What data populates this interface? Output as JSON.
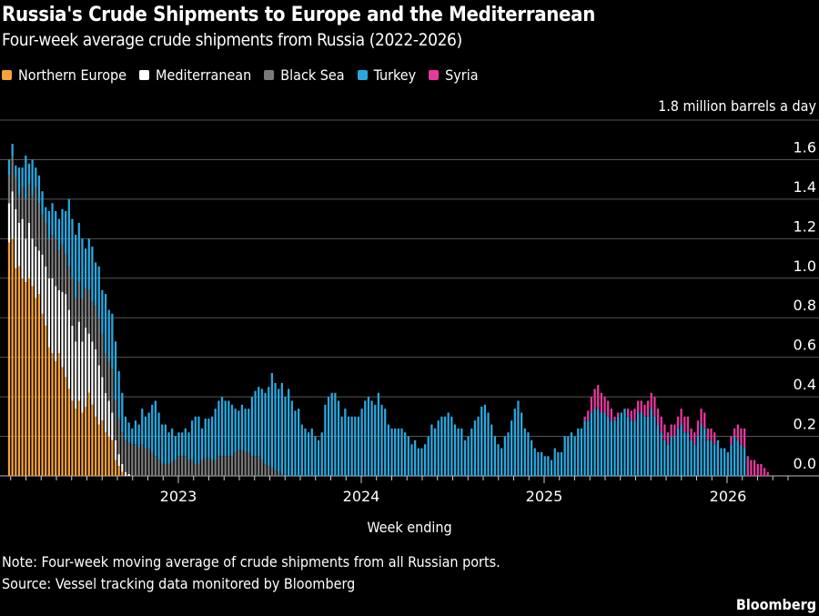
{
  "chart_data": {
    "type": "bar",
    "stacked": true,
    "title": "Russia's Crude Shipments to Europe and the Mediterranean",
    "subtitle": "Four-week average crude shipments from Russia (2022-2026)",
    "xlabel": "Week ending",
    "ylabel": "1.8 million barrels a day",
    "ylim": [
      0,
      1.8
    ],
    "yticks": [
      "0.0",
      "0.2",
      "0.4",
      "0.6",
      "0.8",
      "1.0",
      "1.2",
      "1.4",
      "1.6"
    ],
    "xticks": [
      "2023",
      "2024",
      "2025",
      "2026"
    ],
    "grid": true,
    "legend_position": "top-left",
    "x_start": "2022-02 (weekly)",
    "x_end": "2026-04 (weekly)",
    "series": [
      {
        "name": "Northern Europe",
        "color": "#F7A23A",
        "values": [
          1.18,
          1.2,
          1.05,
          1.06,
          1.0,
          0.98,
          1.0,
          0.96,
          0.9,
          0.92,
          0.82,
          0.76,
          0.65,
          0.62,
          0.58,
          0.62,
          0.55,
          0.5,
          0.44,
          0.38,
          0.34,
          0.38,
          0.32,
          0.35,
          0.42,
          0.36,
          0.3,
          0.26,
          0.28,
          0.22,
          0.2,
          0.18,
          0.08,
          0.05,
          0.02,
          0,
          0,
          0,
          0,
          0,
          0,
          0,
          0,
          0,
          0,
          0,
          0,
          0,
          0,
          0,
          0,
          0,
          0,
          0,
          0,
          0,
          0,
          0,
          0,
          0,
          0,
          0,
          0,
          0,
          0,
          0,
          0,
          0,
          0,
          0,
          0,
          0,
          0,
          0,
          0,
          0,
          0,
          0,
          0,
          0,
          0,
          0,
          0,
          0,
          0,
          0,
          0,
          0,
          0,
          0,
          0,
          0,
          0,
          0,
          0,
          0,
          0,
          0,
          0,
          0,
          0,
          0,
          0,
          0,
          0,
          0,
          0,
          0,
          0,
          0,
          0,
          0,
          0,
          0,
          0,
          0,
          0,
          0,
          0,
          0,
          0,
          0,
          0,
          0,
          0,
          0,
          0,
          0,
          0,
          0,
          0,
          0,
          0,
          0,
          0,
          0,
          0,
          0,
          0,
          0,
          0,
          0,
          0,
          0,
          0,
          0,
          0,
          0,
          0,
          0,
          0,
          0,
          0,
          0,
          0,
          0,
          0,
          0,
          0,
          0,
          0,
          0,
          0,
          0,
          0,
          0,
          0,
          0,
          0,
          0,
          0,
          0,
          0,
          0,
          0,
          0,
          0,
          0,
          0,
          0,
          0,
          0,
          0,
          0,
          0,
          0,
          0,
          0,
          0,
          0,
          0,
          0,
          0,
          0,
          0,
          0,
          0,
          0,
          0,
          0,
          0,
          0,
          0,
          0,
          0,
          0,
          0,
          0,
          0,
          0,
          0,
          0,
          0,
          0,
          0,
          0,
          0,
          0,
          0,
          0,
          0,
          0,
          0,
          0,
          0,
          0,
          0,
          0,
          0,
          0,
          0,
          0,
          0,
          0
        ]
      },
      {
        "name": "Mediterranean",
        "color": "#FFFFFF",
        "values": [
          0.2,
          0.24,
          0.3,
          0.22,
          0.3,
          0.22,
          0.28,
          0.24,
          0.26,
          0.22,
          0.3,
          0.3,
          0.35,
          0.38,
          0.38,
          0.32,
          0.38,
          0.42,
          0.4,
          0.38,
          0.34,
          0.4,
          0.36,
          0.4,
          0.3,
          0.32,
          0.34,
          0.3,
          0.22,
          0.2,
          0.18,
          0.14,
          0.1,
          0.06,
          0.04,
          0.02,
          0.01,
          0,
          0,
          0,
          0,
          0,
          0,
          0,
          0,
          0,
          0,
          0,
          0,
          0,
          0,
          0,
          0,
          0,
          0,
          0,
          0,
          0,
          0,
          0,
          0,
          0,
          0,
          0,
          0,
          0,
          0,
          0,
          0,
          0,
          0,
          0,
          0,
          0,
          0,
          0,
          0,
          0,
          0,
          0,
          0,
          0,
          0,
          0,
          0,
          0,
          0,
          0,
          0,
          0,
          0,
          0,
          0,
          0,
          0,
          0,
          0,
          0,
          0,
          0,
          0,
          0,
          0,
          0,
          0,
          0,
          0,
          0,
          0,
          0,
          0,
          0,
          0,
          0,
          0,
          0,
          0,
          0,
          0,
          0,
          0,
          0,
          0,
          0,
          0,
          0,
          0,
          0,
          0,
          0,
          0,
          0,
          0,
          0,
          0,
          0,
          0,
          0,
          0,
          0,
          0,
          0,
          0,
          0,
          0,
          0,
          0,
          0,
          0,
          0,
          0,
          0,
          0,
          0,
          0,
          0,
          0,
          0,
          0,
          0,
          0,
          0,
          0,
          0,
          0,
          0,
          0,
          0,
          0,
          0,
          0,
          0,
          0,
          0,
          0,
          0,
          0,
          0,
          0,
          0,
          0,
          0,
          0,
          0,
          0,
          0,
          0,
          0,
          0,
          0,
          0,
          0,
          0,
          0,
          0,
          0,
          0,
          0,
          0,
          0,
          0,
          0,
          0,
          0,
          0,
          0,
          0,
          0,
          0,
          0,
          0,
          0,
          0,
          0,
          0,
          0,
          0,
          0,
          0,
          0,
          0,
          0,
          0,
          0,
          0,
          0,
          0,
          0,
          0,
          0,
          0
        ]
      },
      {
        "name": "Black Sea",
        "color": "#7A7A7A",
        "values": [
          0.14,
          0.18,
          0.16,
          0.14,
          0.16,
          0.2,
          0.2,
          0.22,
          0.3,
          0.24,
          0.2,
          0.22,
          0.2,
          0.22,
          0.24,
          0.2,
          0.24,
          0.2,
          0.22,
          0.24,
          0.22,
          0.2,
          0.22,
          0.2,
          0.22,
          0.2,
          0.22,
          0.24,
          0.22,
          0.2,
          0.2,
          0.22,
          0.2,
          0.18,
          0.16,
          0.16,
          0.16,
          0.16,
          0.16,
          0.14,
          0.16,
          0.14,
          0.14,
          0.12,
          0.1,
          0.08,
          0.06,
          0.06,
          0.06,
          0.07,
          0.08,
          0.1,
          0.1,
          0.1,
          0.08,
          0.08,
          0.06,
          0.06,
          0.08,
          0.09,
          0.09,
          0.08,
          0.08,
          0.1,
          0.1,
          0.1,
          0.1,
          0.1,
          0.12,
          0.13,
          0.13,
          0.12,
          0.12,
          0.1,
          0.1,
          0.1,
          0.08,
          0.06,
          0.05,
          0.04,
          0.03,
          0.02,
          0.01,
          0,
          0,
          0,
          0,
          0,
          0,
          0,
          0,
          0,
          0,
          0,
          0,
          0,
          0,
          0,
          0,
          0,
          0,
          0,
          0,
          0,
          0,
          0,
          0,
          0,
          0,
          0,
          0,
          0,
          0,
          0,
          0,
          0,
          0,
          0,
          0,
          0,
          0,
          0,
          0,
          0,
          0,
          0,
          0,
          0,
          0,
          0,
          0,
          0,
          0,
          0,
          0,
          0,
          0,
          0,
          0,
          0,
          0,
          0,
          0,
          0,
          0,
          0,
          0,
          0,
          0,
          0,
          0,
          0,
          0,
          0,
          0,
          0,
          0,
          0,
          0,
          0,
          0,
          0,
          0,
          0,
          0,
          0,
          0,
          0,
          0,
          0,
          0,
          0,
          0,
          0,
          0,
          0,
          0,
          0,
          0,
          0,
          0,
          0,
          0,
          0,
          0,
          0,
          0,
          0,
          0,
          0,
          0,
          0,
          0,
          0,
          0,
          0,
          0,
          0,
          0,
          0,
          0,
          0,
          0,
          0,
          0,
          0,
          0,
          0,
          0,
          0,
          0,
          0,
          0,
          0,
          0,
          0,
          0,
          0,
          0,
          0,
          0,
          0,
          0,
          0,
          0,
          0,
          0,
          0,
          0,
          0,
          0,
          0
        ]
      },
      {
        "name": "Turkey",
        "color": "#29A8E0",
        "values": [
          0.08,
          0.06,
          0.06,
          0.14,
          0.1,
          0.22,
          0.1,
          0.18,
          0.1,
          0.14,
          0.12,
          0.08,
          0.14,
          0.16,
          0.14,
          0.16,
          0.18,
          0.22,
          0.34,
          0.3,
          0.32,
          0.3,
          0.3,
          0.2,
          0.26,
          0.28,
          0.22,
          0.26,
          0.22,
          0.3,
          0.26,
          0.28,
          0.3,
          0.24,
          0.2,
          0.12,
          0.1,
          0.08,
          0.12,
          0.12,
          0.18,
          0.16,
          0.18,
          0.24,
          0.28,
          0.24,
          0.2,
          0.2,
          0.16,
          0.17,
          0.12,
          0.12,
          0.12,
          0.14,
          0.14,
          0.2,
          0.24,
          0.24,
          0.16,
          0.2,
          0.2,
          0.22,
          0.26,
          0.28,
          0.3,
          0.28,
          0.28,
          0.26,
          0.22,
          0.2,
          0.23,
          0.22,
          0.22,
          0.3,
          0.33,
          0.35,
          0.36,
          0.36,
          0.4,
          0.48,
          0.44,
          0.42,
          0.46,
          0.4,
          0.44,
          0.38,
          0.33,
          0.34,
          0.26,
          0.24,
          0.22,
          0.24,
          0.2,
          0.18,
          0.22,
          0.36,
          0.4,
          0.42,
          0.42,
          0.38,
          0.3,
          0.34,
          0.3,
          0.3,
          0.3,
          0.3,
          0.34,
          0.38,
          0.4,
          0.38,
          0.36,
          0.42,
          0.36,
          0.34,
          0.26,
          0.24,
          0.24,
          0.24,
          0.24,
          0.22,
          0.2,
          0.16,
          0.18,
          0.14,
          0.14,
          0.16,
          0.2,
          0.26,
          0.24,
          0.28,
          0.3,
          0.3,
          0.32,
          0.3,
          0.26,
          0.24,
          0.24,
          0.18,
          0.2,
          0.24,
          0.28,
          0.3,
          0.35,
          0.36,
          0.32,
          0.26,
          0.2,
          0.16,
          0.14,
          0.2,
          0.22,
          0.28,
          0.34,
          0.38,
          0.32,
          0.24,
          0.22,
          0.18,
          0.14,
          0.12,
          0.12,
          0.1,
          0.1,
          0.08,
          0.14,
          0.12,
          0.12,
          0.2,
          0.2,
          0.22,
          0.2,
          0.24,
          0.24,
          0.28,
          0.28,
          0.32,
          0.34,
          0.34,
          0.32,
          0.32,
          0.3,
          0.28,
          0.28,
          0.3,
          0.32,
          0.34,
          0.3,
          0.28,
          0.28,
          0.32,
          0.32,
          0.3,
          0.3,
          0.34,
          0.3,
          0.26,
          0.22,
          0.18,
          0.16,
          0.2,
          0.2,
          0.24,
          0.26,
          0.22,
          0.22,
          0.18,
          0.16,
          0.2,
          0.26,
          0.24,
          0.18,
          0.18,
          0.16,
          0.18,
          0.14,
          0.14,
          0.12,
          0.16,
          0.2,
          0.18,
          0.16,
          0.14
        ]
      },
      {
        "name": "Syria",
        "color": "#E6399E",
        "values": [
          0,
          0,
          0,
          0,
          0,
          0,
          0,
          0,
          0,
          0,
          0,
          0,
          0,
          0,
          0,
          0,
          0,
          0,
          0,
          0,
          0,
          0,
          0,
          0,
          0,
          0,
          0,
          0,
          0,
          0,
          0,
          0,
          0,
          0,
          0,
          0,
          0,
          0,
          0,
          0,
          0,
          0,
          0,
          0,
          0,
          0,
          0,
          0,
          0,
          0,
          0,
          0,
          0,
          0,
          0,
          0,
          0,
          0,
          0,
          0,
          0,
          0,
          0,
          0,
          0,
          0,
          0,
          0,
          0,
          0,
          0,
          0,
          0,
          0,
          0,
          0,
          0,
          0,
          0,
          0,
          0,
          0,
          0,
          0,
          0,
          0,
          0,
          0,
          0,
          0,
          0,
          0,
          0,
          0,
          0,
          0,
          0,
          0,
          0,
          0,
          0,
          0,
          0,
          0,
          0,
          0,
          0,
          0,
          0,
          0,
          0,
          0,
          0,
          0,
          0,
          0,
          0,
          0,
          0,
          0,
          0,
          0,
          0,
          0,
          0,
          0,
          0,
          0,
          0,
          0,
          0,
          0,
          0,
          0,
          0,
          0,
          0,
          0,
          0,
          0,
          0,
          0,
          0,
          0,
          0,
          0,
          0,
          0,
          0,
          0,
          0,
          0,
          0,
          0,
          0,
          0,
          0,
          0,
          0,
          0,
          0,
          0,
          0,
          0,
          0,
          0,
          0,
          0,
          0,
          0,
          0,
          0,
          0,
          0.02,
          0.05,
          0.08,
          0.1,
          0.12,
          0.1,
          0.08,
          0.08,
          0.06,
          0.02,
          0.02,
          0,
          0,
          0.04,
          0.05,
          0.06,
          0.06,
          0.06,
          0.06,
          0.08,
          0.08,
          0.1,
          0.08,
          0.08,
          0.08,
          0.06,
          0.06,
          0.06,
          0.06,
          0.08,
          0.08,
          0.08,
          0.06,
          0.06,
          0.08,
          0.08,
          0.08,
          0.06,
          0.06,
          0.06,
          0,
          0,
          0,
          0,
          0.04,
          0.04,
          0.08,
          0.08,
          0.1,
          0.1,
          0.08,
          0.08,
          0.06,
          0.06,
          0.04,
          0.02,
          0,
          0,
          0,
          0,
          0
        ]
      }
    ]
  },
  "legend": [
    {
      "label": "Northern Europe",
      "color": "#F7A23A"
    },
    {
      "label": "Mediterranean",
      "color": "#FFFFFF"
    },
    {
      "label": "Black Sea",
      "color": "#7A7A7A"
    },
    {
      "label": "Turkey",
      "color": "#29A8E0"
    },
    {
      "label": "Syria",
      "color": "#E6399E"
    }
  ],
  "footer": {
    "note": "Note: Four-week moving average of crude shipments from all Russian ports.",
    "source": "Source: Vessel tracking data monitored by Bloomberg",
    "brand": "Bloomberg"
  }
}
